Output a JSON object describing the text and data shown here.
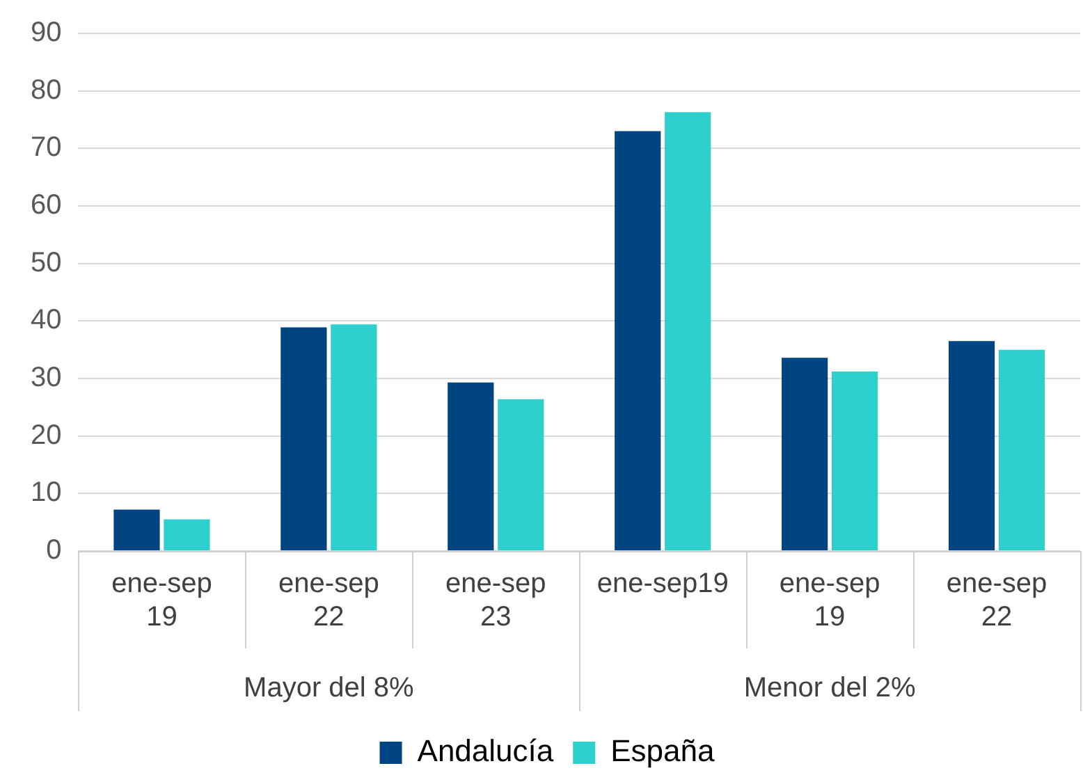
{
  "chart_data": {
    "type": "bar",
    "categories": [
      "ene-sep 19",
      "ene-sep 22",
      "ene-sep 23",
      "ene-sep19",
      "ene-sep 19",
      "ene-sep 22"
    ],
    "series": [
      {
        "name": "Andalucía",
        "color": "#004481",
        "values": [
          7.2,
          38.9,
          29.3,
          73.0,
          33.6,
          36.5
        ]
      },
      {
        "name": "España",
        "color": "#2ecfcf",
        "values": [
          5.5,
          39.4,
          26.4,
          76.3,
          31.2,
          35.0
        ]
      }
    ],
    "annotations": [
      "Mayor del 8%",
      "Menor del 2%"
    ],
    "ylim": [
      0,
      90
    ],
    "yticks": [
      0,
      10,
      20,
      30,
      40,
      50,
      60,
      70,
      80,
      90
    ],
    "grid": "y",
    "legend": "bottom"
  }
}
